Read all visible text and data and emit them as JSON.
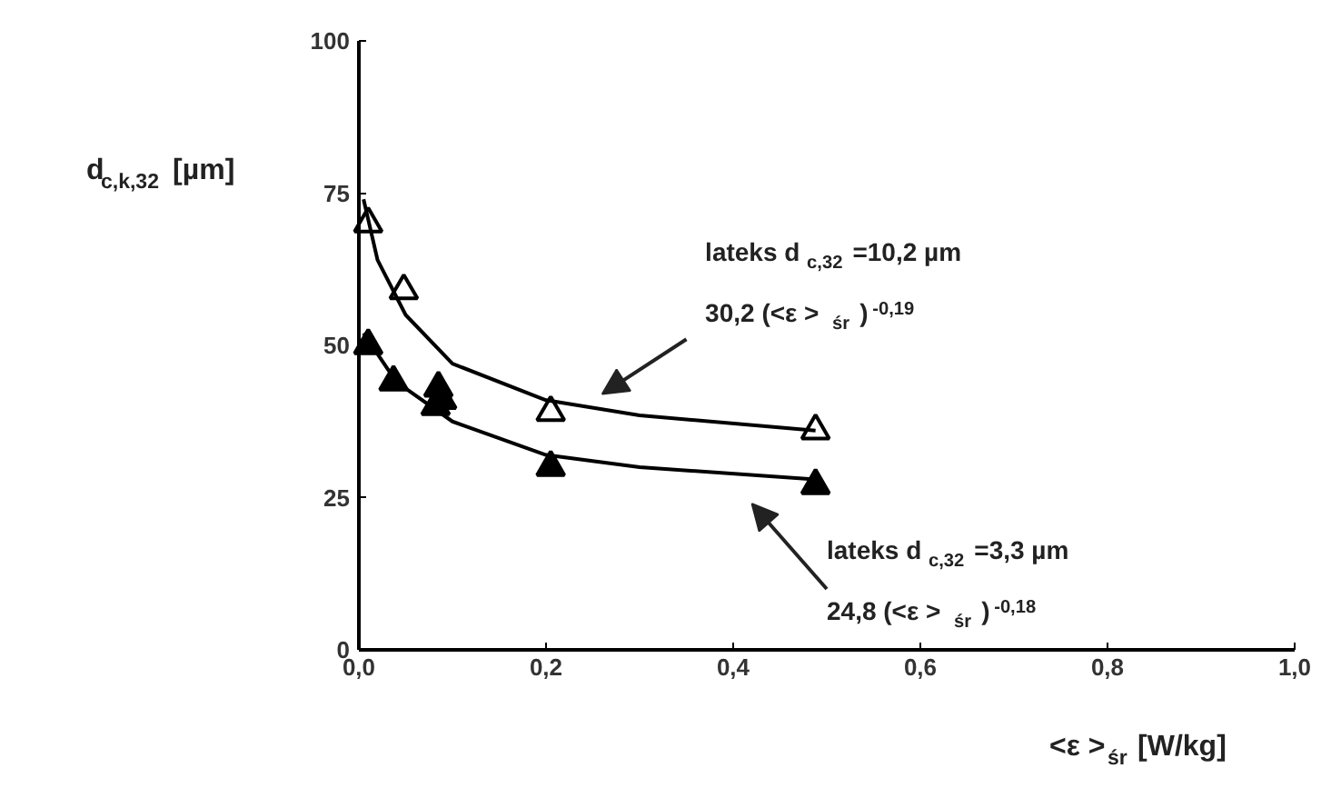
{
  "chart_data": {
    "type": "scatter",
    "ylabel": "d$_{c,k,32}$ [µm]",
    "xlabel": "<ε >$_{śr}$ [W/kg]",
    "xlim": [
      0,
      1.0
    ],
    "ylim": [
      0,
      100
    ],
    "xticks": [
      {
        "value": 0,
        "label": "0,0"
      },
      {
        "value": 0.2,
        "label": "0,2"
      },
      {
        "value": 0.4,
        "label": "0,4"
      },
      {
        "value": 0.6,
        "label": "0,6"
      },
      {
        "value": 0.8,
        "label": "0,8"
      },
      {
        "value": 1.0,
        "label": "1,0"
      }
    ],
    "yticks": [
      0,
      25,
      50,
      75,
      100
    ],
    "grid": false,
    "series": [
      {
        "type": "scatter",
        "marker": "triangle",
        "color": "#ffffff",
        "x": [
          0.01,
          0.048,
          0.205,
          0.488
        ],
        "values": [
          70,
          59,
          39,
          36
        ]
      },
      {
        "type": "scatter",
        "marker": "triangle",
        "color": "#000000",
        "x": [
          0.01,
          0.037,
          0.085,
          0.089,
          0.082,
          0.205,
          0.488
        ],
        "values": [
          50,
          44,
          43,
          41,
          40,
          30,
          27
        ]
      },
      {
        "type": "line",
        "line_style": "solid",
        "color": "#000000",
        "x": [
          0.005,
          0.02,
          0.05,
          0.1,
          0.2,
          0.3,
          0.488
        ],
        "values": [
          74,
          64,
          55,
          47,
          41,
          38.5,
          36
        ]
      },
      {
        "type": "line",
        "line_style": "solid",
        "color": "#000000",
        "x": [
          0.005,
          0.04,
          0.1,
          0.2,
          0.3,
          0.488
        ],
        "values": [
          52,
          44,
          37.5,
          32,
          30,
          28
        ]
      }
    ],
    "annotations": [
      "lateks d$_{c,32}$=10,2 µm",
      "30,2 (<ε >$_{śr}$)$^{-0,19}$",
      "lateks d$_{c,32}$=3,3 µm",
      "24,8 (<ε >$_{śr}$)$^{-0,18}$"
    ]
  }
}
